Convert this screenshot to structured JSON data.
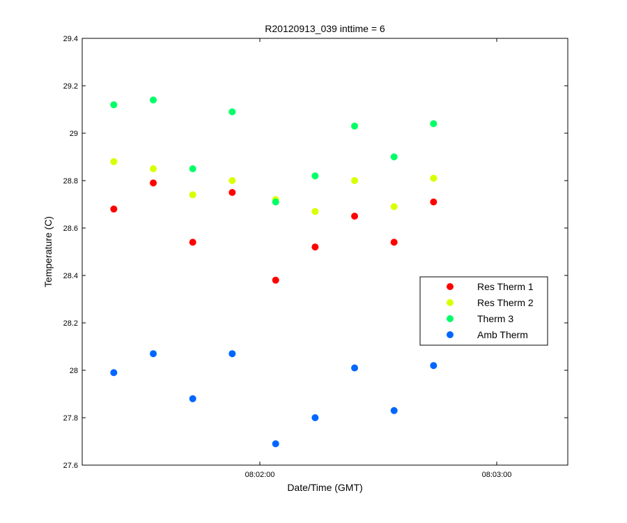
{
  "chart_data": {
    "type": "scatter",
    "title": "R20120913_039 inttime = 6",
    "xlabel": "Date/Time (GMT)",
    "ylabel": "Temperature (C)",
    "xlim": [
      "08:01:15",
      "08:03:18"
    ],
    "ylim": [
      27.6,
      29.4
    ],
    "yticks": [
      27.6,
      27.8,
      28,
      28.2,
      28.4,
      28.6,
      28.8,
      29,
      29.2,
      29.4
    ],
    "yticklabels": [
      "27.6",
      "27.8",
      "28",
      "28.2",
      "28.4",
      "28.6",
      "28.8",
      "29",
      "29.2",
      "29.4"
    ],
    "xticks": [
      "08:02:00",
      "08:03:00"
    ],
    "xticklabels": [
      "08:02:00",
      "08:03:00"
    ],
    "grid": false,
    "legend_position": "right",
    "x": [
      "08:01:23",
      "08:01:33",
      "08:01:43",
      "08:01:53",
      "08:02:04",
      "08:02:14",
      "08:02:24",
      "08:02:34",
      "08:02:44"
    ],
    "series": [
      {
        "name": "Res Therm 1",
        "color": "#ff0000",
        "values": [
          28.68,
          28.79,
          28.54,
          28.75,
          28.38,
          28.52,
          28.65,
          28.54,
          28.71
        ]
      },
      {
        "name": "Res Therm 2",
        "color": "#d9ff00",
        "values": [
          28.88,
          28.85,
          28.74,
          28.8,
          28.72,
          28.67,
          28.8,
          28.69,
          28.81
        ]
      },
      {
        "name": "Therm 3",
        "color": "#00ff66",
        "values": [
          29.12,
          29.14,
          28.85,
          29.09,
          28.71,
          28.82,
          29.03,
          28.9,
          29.04
        ]
      },
      {
        "name": "Amb Therm",
        "color": "#0066ff",
        "values": [
          27.99,
          28.07,
          27.88,
          28.07,
          27.69,
          27.8,
          28.01,
          27.83,
          28.02
        ]
      }
    ]
  }
}
